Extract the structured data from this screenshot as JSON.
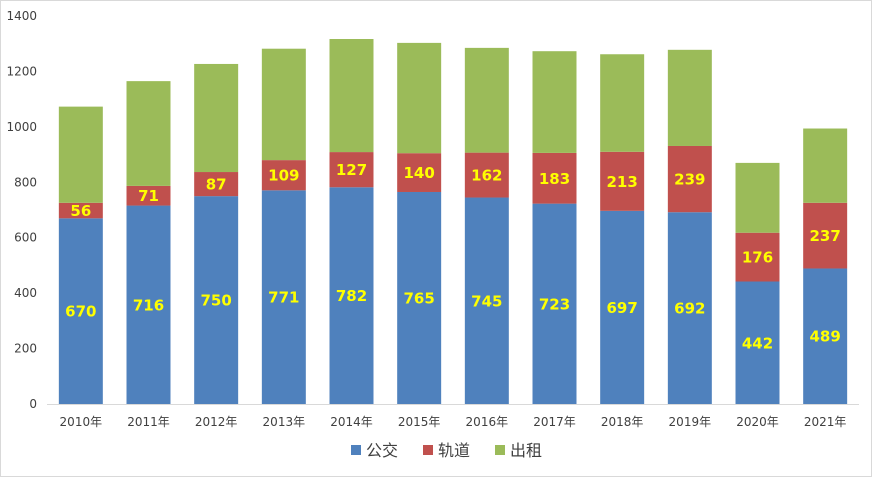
{
  "chart_data": {
    "type": "bar",
    "stacked": true,
    "categories": [
      "2010年",
      "2011年",
      "2012年",
      "2013年",
      "2014年",
      "2015年",
      "2016年",
      "2017年",
      "2018年",
      "2019年",
      "2020年",
      "2021年"
    ],
    "series": [
      {
        "name": "公交",
        "color": "#4f81bd",
        "values": [
          670,
          716,
          750,
          771,
          782,
          765,
          745,
          723,
          697,
          692,
          442,
          489
        ],
        "labels_shown": true
      },
      {
        "name": "轨道",
        "color": "#c0504d",
        "values": [
          56,
          71,
          87,
          109,
          127,
          140,
          162,
          183,
          213,
          239,
          176,
          237
        ],
        "labels_shown": true
      },
      {
        "name": "出租",
        "color": "#9bbb59",
        "values": [
          347,
          378,
          390,
          402,
          408,
          398,
          378,
          367,
          352,
          347,
          252,
          268
        ],
        "labels_shown": false
      }
    ],
    "ylim": [
      0,
      1400
    ],
    "yticks": [
      0,
      200,
      400,
      600,
      800,
      1000,
      1200,
      1400
    ],
    "gridlines": false,
    "legend_position": "bottom",
    "label_color": "#ffff00"
  }
}
